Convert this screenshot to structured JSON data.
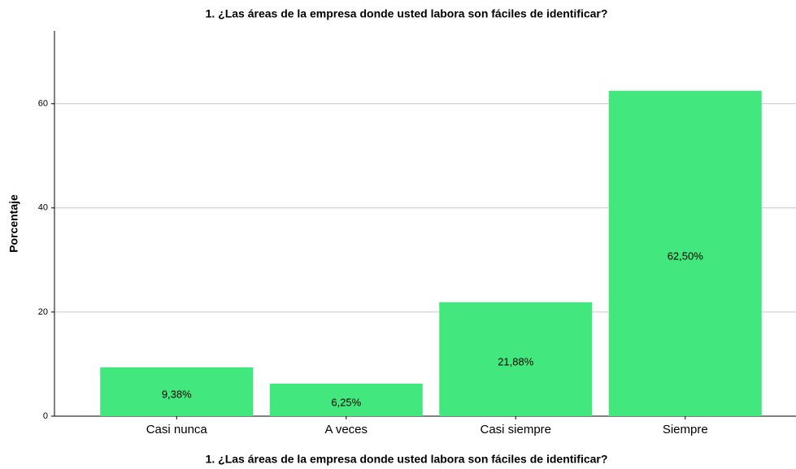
{
  "chart_data": {
    "type": "bar",
    "title": "1. ¿Las áreas de la empresa donde usted labora son fáciles de identificar?",
    "x_label": "1. ¿Las áreas de la empresa donde usted labora son fáciles de identificar?",
    "y_label": "Porcentaje",
    "categories": [
      "Casi nunca",
      "A veces",
      "Casi siempre",
      "Siempre"
    ],
    "values": [
      9.38,
      6.25,
      21.88,
      62.5
    ],
    "value_labels": [
      "9,38%",
      "6,25%",
      "21,88%",
      "62,50%"
    ],
    "color": "#42e87d",
    "ylim": [
      0,
      74
    ],
    "yticks": [
      0,
      20,
      40,
      60
    ],
    "grid": true
  }
}
